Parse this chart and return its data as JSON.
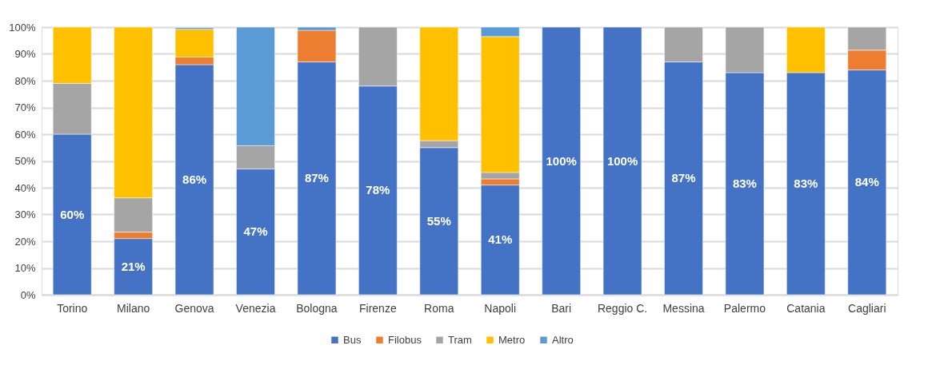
{
  "chart_data": {
    "type": "bar",
    "stacked": true,
    "categories": [
      "Torino",
      "Milano",
      "Genova",
      "Venezia",
      "Bologna",
      "Firenze",
      "Roma",
      "Napoli",
      "Bari",
      "Reggio C.",
      "Messina",
      "Palermo",
      "Catania",
      "Cagliari"
    ],
    "series": [
      {
        "name": "Bus",
        "color": "#4472c4",
        "values": [
          60,
          21,
          86,
          47,
          87,
          78,
          55,
          41,
          100,
          100,
          87,
          83,
          83,
          84
        ],
        "value_labels": [
          "60%",
          "21%",
          "86%",
          "47%",
          "87%",
          "78%",
          "55%",
          "41%",
          "100%",
          "100%",
          "87%",
          "83%",
          "83%",
          "84%"
        ]
      },
      {
        "name": "Filobus",
        "color": "#ed7d31",
        "values": [
          null,
          2.4,
          2.8,
          null,
          11.8,
          null,
          null,
          2.3,
          null,
          null,
          null,
          null,
          null,
          7.4
        ]
      },
      {
        "name": "Tram",
        "color": "#a5a5a5",
        "values": [
          19,
          12.8,
          null,
          8.7,
          null,
          22,
          2.6,
          2.4,
          null,
          null,
          13,
          17,
          null,
          8.6
        ]
      },
      {
        "name": "Metro",
        "color": "#ffc000",
        "values": [
          21,
          63.8,
          10.4,
          null,
          null,
          null,
          42.4,
          50.8,
          null,
          null,
          null,
          null,
          17,
          null
        ]
      },
      {
        "name": "Altro",
        "color": "#5b9bd5",
        "values": [
          null,
          null,
          0.6,
          44.3,
          1.2,
          null,
          null,
          3.5,
          null,
          null,
          null,
          null,
          null,
          null
        ]
      }
    ],
    "ylim": [
      0,
      100
    ],
    "yticks": [
      {
        "value": 0,
        "label": "0%"
      },
      {
        "value": 10,
        "label": "10%"
      },
      {
        "value": 20,
        "label": "20%"
      },
      {
        "value": 30,
        "label": "30%"
      },
      {
        "value": 40,
        "label": "40%"
      },
      {
        "value": 50,
        "label": "50%"
      },
      {
        "value": 60,
        "label": "60%"
      },
      {
        "value": 70,
        "label": "70%"
      },
      {
        "value": 80,
        "label": "80%"
      },
      {
        "value": 90,
        "label": "90%"
      },
      {
        "value": 100,
        "label": "100%"
      }
    ],
    "grid": "y",
    "legend": "bottom"
  }
}
